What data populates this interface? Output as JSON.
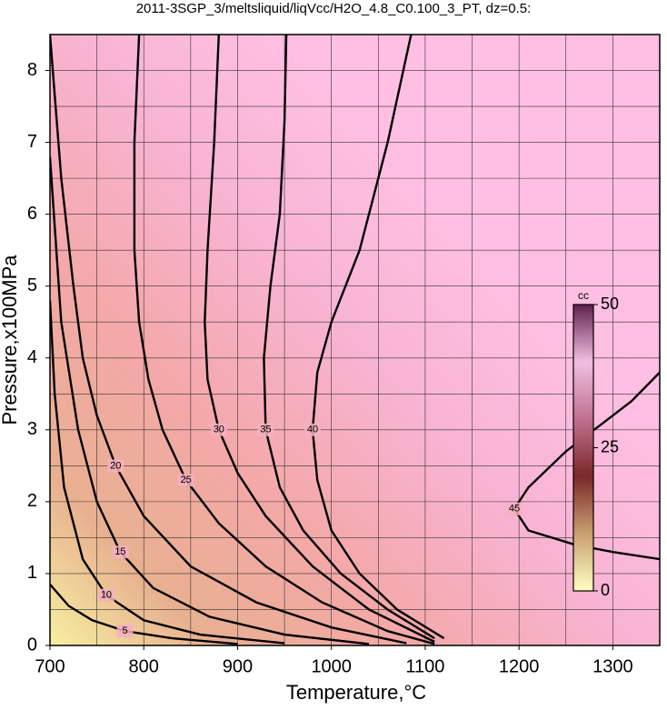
{
  "chart_data": {
    "type": "contour",
    "title": "2011-3SGP_3/meltsliquid/liqVcc/H2O_4.8_C0.100_3_PT, dz=0.5:",
    "xlabel": "Temperature,°C",
    "ylabel": "Pressure,x100MPa",
    "xlim": [
      700,
      1350
    ],
    "ylim": [
      0,
      8.5
    ],
    "xticks": [
      700,
      800,
      900,
      1000,
      1100,
      1200,
      1300
    ],
    "yticks": [
      0,
      1,
      2,
      3,
      4,
      5,
      6,
      7,
      8
    ],
    "xminorticks": [
      750,
      850,
      950,
      1050,
      1150,
      1250
    ],
    "yminorticks": [
      0.5,
      1.5,
      2.5,
      3.5,
      4.5,
      5.5,
      6.5,
      7.5
    ],
    "grid": true,
    "line_color": "#000000",
    "series": [
      {
        "level": 5,
        "x": [
          700,
          720,
          745,
          780,
          830,
          900
        ],
        "y": [
          0.85,
          0.55,
          0.35,
          0.2,
          0.1,
          0.02
        ]
      },
      {
        "level": 10,
        "x": [
          700,
          705,
          715,
          735,
          760,
          800,
          860,
          950
        ],
        "y": [
          4.8,
          3.5,
          2.2,
          1.2,
          0.7,
          0.35,
          0.15,
          0.03
        ]
      },
      {
        "level": 15,
        "x": [
          700,
          712,
          730,
          750,
          775,
          810,
          870,
          950,
          1040
        ],
        "y": [
          6.8,
          4.5,
          3.0,
          2.0,
          1.3,
          0.8,
          0.4,
          0.15,
          0.02
        ]
      },
      {
        "level": 20,
        "x": [
          700,
          712,
          725,
          735,
          750,
          770,
          800,
          850,
          920,
          1000,
          1080
        ],
        "y": [
          8.5,
          6.5,
          5,
          4,
          3.2,
          2.5,
          1.8,
          1.1,
          0.6,
          0.25,
          0.03
        ]
      },
      {
        "level": 25,
        "x": [
          795,
          790,
          790,
          795,
          805,
          820,
          845,
          880,
          930,
          990,
          1060,
          1110
        ],
        "y": [
          8.5,
          7,
          5.5,
          4.5,
          3.7,
          3,
          2.3,
          1.7,
          1.1,
          0.6,
          0.2,
          0.02
        ]
      },
      {
        "level": 30,
        "x": [
          880,
          875,
          868,
          865,
          868,
          880,
          900,
          930,
          980,
          1040,
          1110
        ],
        "y": [
          8.5,
          7,
          5.5,
          4.5,
          3.7,
          3,
          2.4,
          1.8,
          1.1,
          0.5,
          0.05
        ]
      },
      {
        "level": 35,
        "x": [
          952,
          950,
          945,
          935,
          928,
          930,
          945,
          970,
          1010,
          1060,
          1110
        ],
        "y": [
          8.5,
          7.3,
          6,
          5,
          4,
          3,
          2.2,
          1.6,
          1.0,
          0.5,
          0.1
        ]
      },
      {
        "level": 40,
        "x": [
          1085,
          1060,
          1030,
          1000,
          985,
          980,
          985,
          1000,
          1030,
          1070,
          1120
        ],
        "y": [
          8.5,
          7,
          5.5,
          4.5,
          3.8,
          3,
          2.3,
          1.6,
          1.0,
          0.5,
          0.1
        ]
      },
      {
        "level": 45,
        "x": [
          1350,
          1320,
          1290,
          1250,
          1210,
          1195,
          1210,
          1260,
          1300,
          1350
        ],
        "y": [
          3.8,
          3.4,
          3.1,
          2.7,
          2.2,
          1.9,
          1.6,
          1.4,
          1.3,
          1.2
        ]
      }
    ],
    "colorbar": {
      "label": "cc",
      "lim": [
        0,
        50
      ],
      "ticks": [
        0,
        25,
        50
      ],
      "colors": [
        "#ffffc0",
        "#c8a070",
        "#7a2828",
        "#c07090",
        "#f0c0e0",
        "#602050"
      ]
    }
  }
}
